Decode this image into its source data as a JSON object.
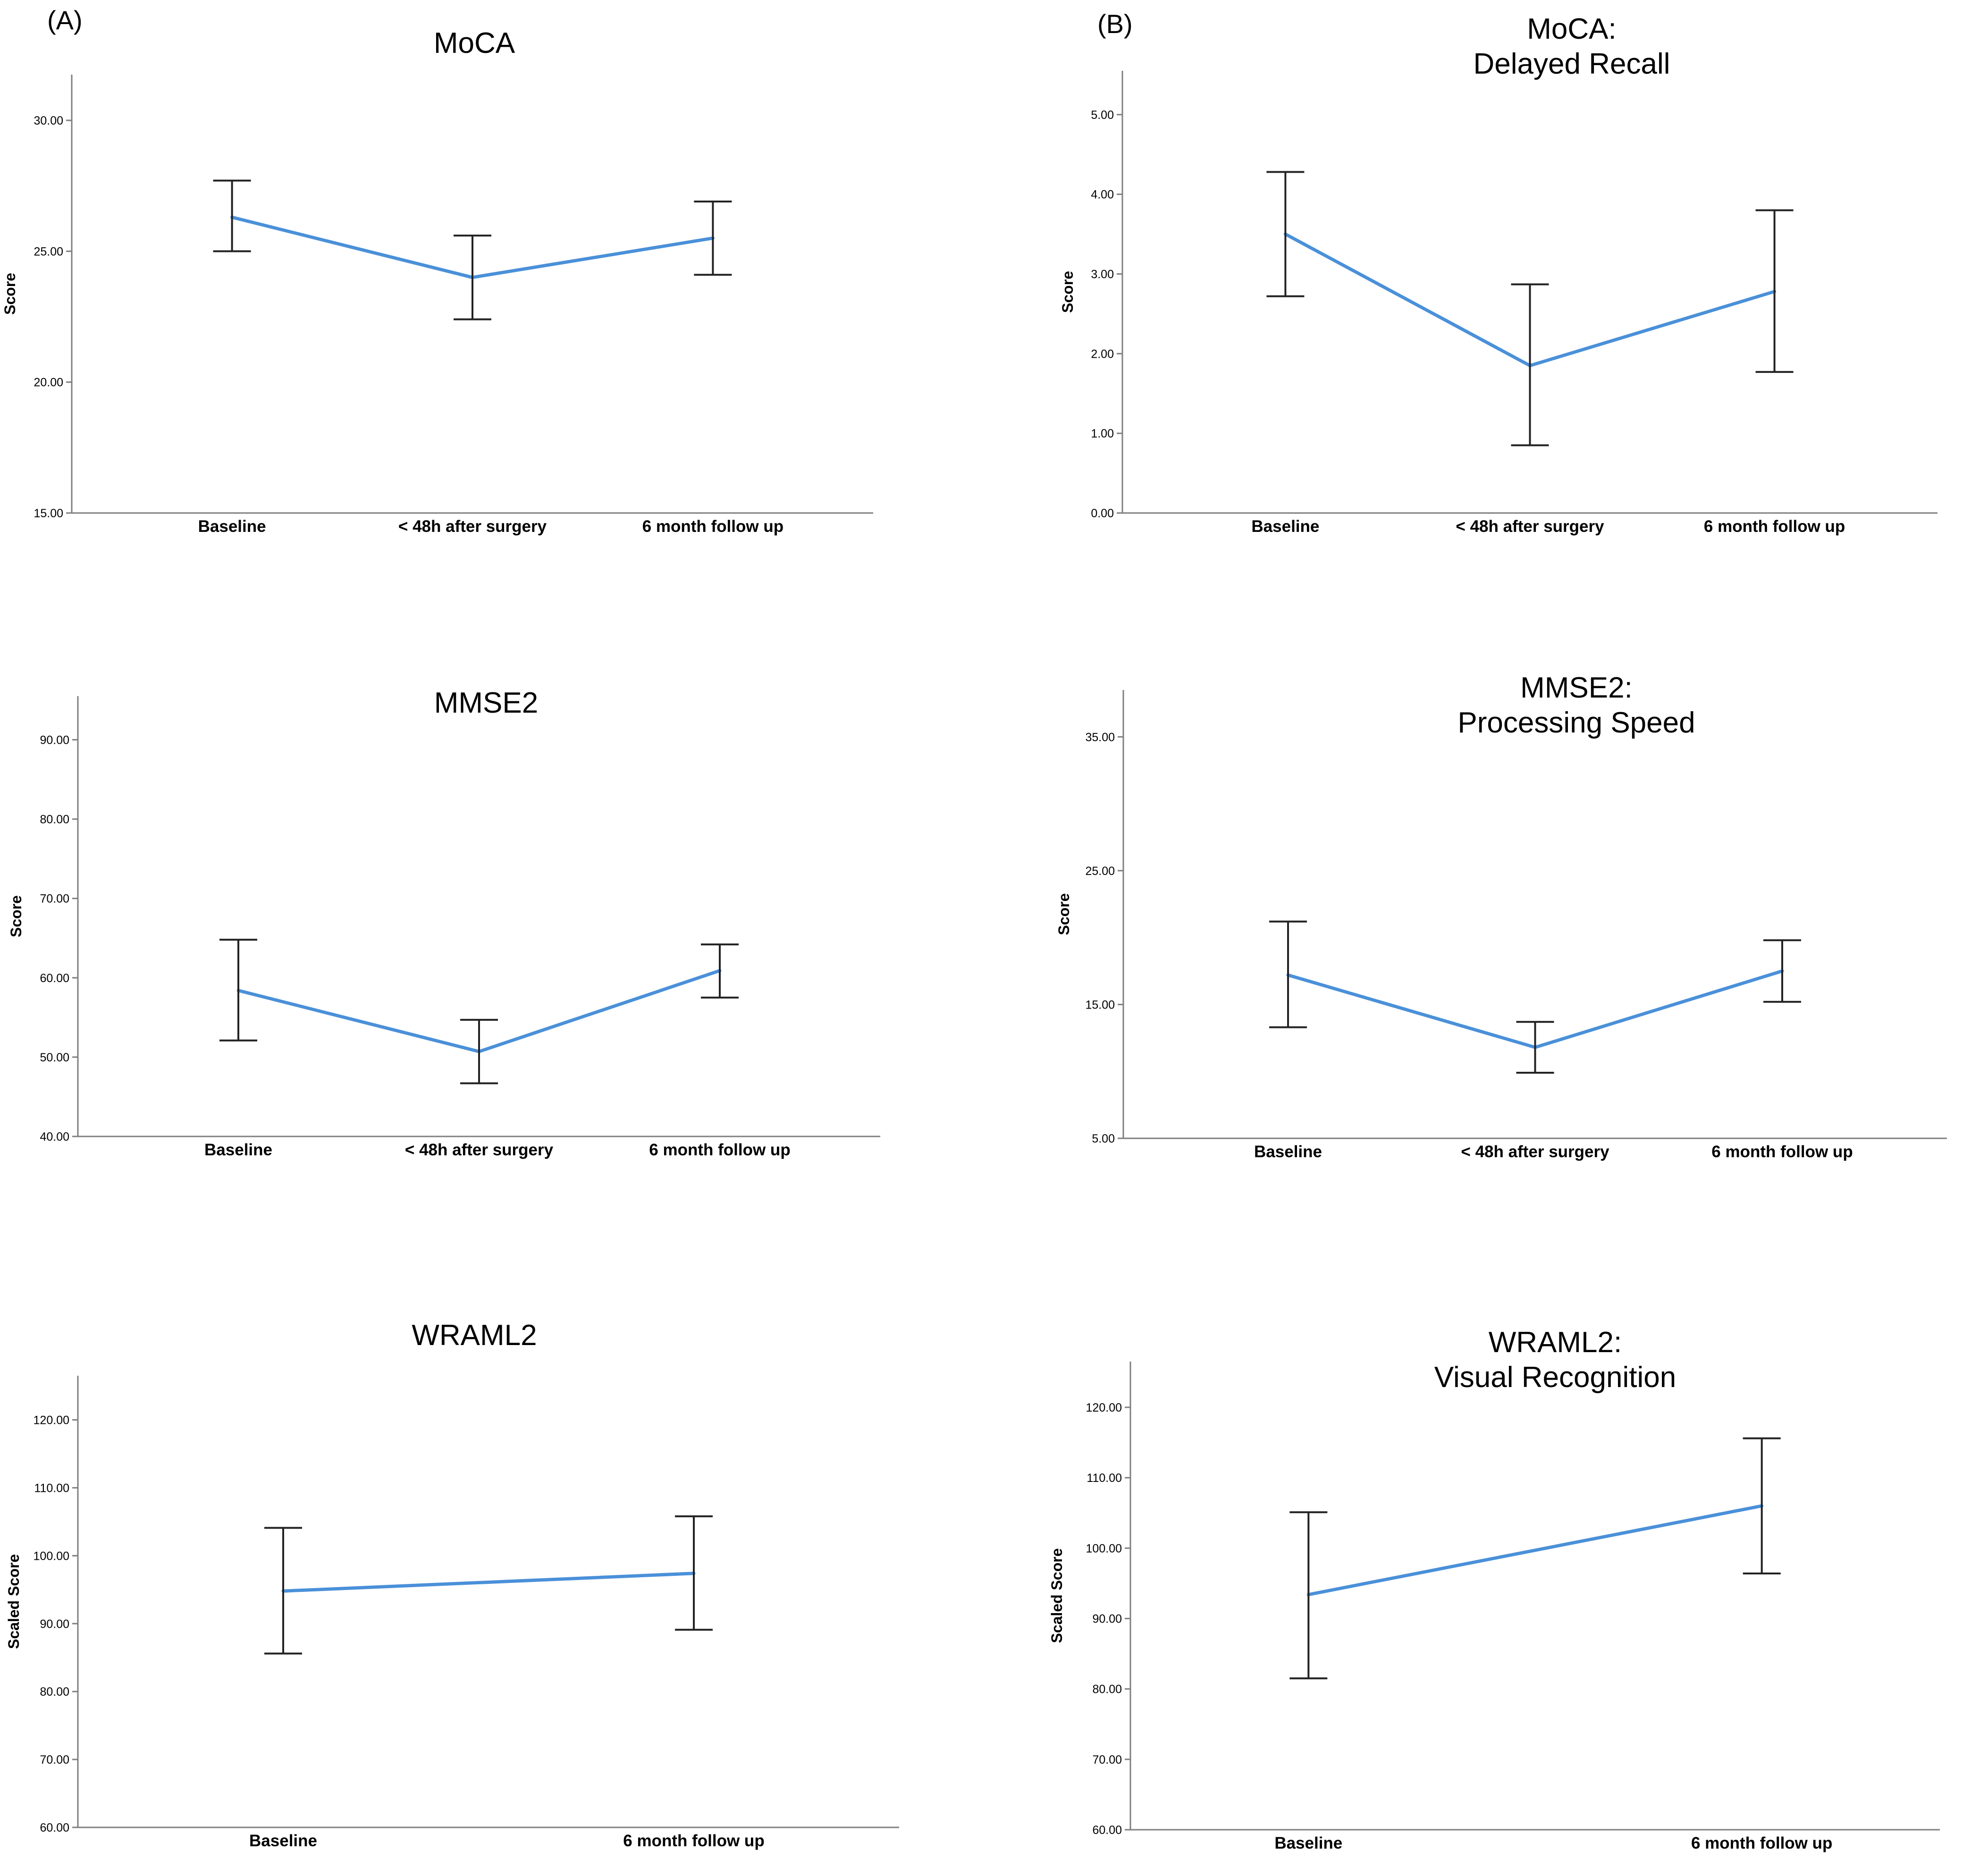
{
  "panel_labels": [
    "(A)",
    "(B)"
  ],
  "chart_data": [
    {
      "type": "line",
      "panel": "A",
      "title_lines": [
        "MoCA"
      ],
      "ylabel": "Score",
      "xlabel": "",
      "categories": [
        "Baseline",
        "< 48h after surgery",
        "6 month follow up"
      ],
      "series": [
        {
          "name": "Mean",
          "values": [
            26.3,
            24.0,
            25.5
          ],
          "error_low": [
            25.0,
            22.4,
            24.1
          ],
          "error_high": [
            27.7,
            25.6,
            26.9
          ]
        }
      ],
      "ylim": [
        15.0,
        31.75
      ],
      "yticks": [
        15.0,
        20.0,
        25.0,
        30.0
      ],
      "ytick_labels": [
        "15.00",
        "20.00",
        "25.00",
        "30.00"
      ],
      "color": "#4a90d9"
    },
    {
      "type": "line",
      "panel": "B",
      "title_lines": [
        "MoCA:",
        "Delayed Recall"
      ],
      "ylabel": "Score",
      "xlabel": "",
      "categories": [
        "Baseline",
        "< 48h after surgery",
        "6 month follow up"
      ],
      "series": [
        {
          "name": "Mean",
          "values": [
            3.5,
            1.85,
            2.78
          ],
          "error_low": [
            2.72,
            0.85,
            1.77
          ],
          "error_high": [
            4.28,
            2.87,
            3.8
          ]
        }
      ],
      "ylim": [
        0.0,
        5.55
      ],
      "yticks": [
        0.0,
        1.0,
        2.0,
        3.0,
        4.0,
        5.0
      ],
      "ytick_labels": [
        "0.00",
        "1.00",
        "2.00",
        "3.00",
        "4.00",
        "5.00"
      ],
      "color": "#4a90d9"
    },
    {
      "type": "line",
      "panel": "A",
      "title_lines": [
        "MMSE2"
      ],
      "ylabel": "Score",
      "xlabel": "",
      "categories": [
        "Baseline",
        "< 48h after surgery",
        "6 month follow up"
      ],
      "series": [
        {
          "name": "Mean",
          "values": [
            58.4,
            50.7,
            60.9
          ],
          "error_low": [
            52.1,
            46.7,
            57.5
          ],
          "error_high": [
            64.8,
            54.7,
            64.2
          ]
        }
      ],
      "ylim": [
        40.0,
        95.5
      ],
      "yticks": [
        40.0,
        50.0,
        60.0,
        70.0,
        80.0,
        90.0
      ],
      "ytick_labels": [
        "40.00",
        "50.00",
        "60.00",
        "70.00",
        "80.00",
        "90.00"
      ],
      "color": "#4a90d9"
    },
    {
      "type": "line",
      "panel": "B",
      "title_lines": [
        "MMSE2:",
        "Processing Speed"
      ],
      "ylabel": "Score",
      "xlabel": "",
      "categories": [
        "Baseline",
        "< 48h after surgery",
        "6 month follow up"
      ],
      "series": [
        {
          "name": "Mean",
          "values": [
            17.2,
            11.8,
            17.5
          ],
          "error_low": [
            13.3,
            9.9,
            15.2
          ],
          "error_high": [
            21.2,
            13.7,
            19.8
          ]
        }
      ],
      "ylim": [
        5.0,
        38.5
      ],
      "yticks": [
        5.0,
        15.0,
        25.0,
        35.0
      ],
      "ytick_labels": [
        "5.00",
        "15.00",
        "25.00",
        "35.00"
      ],
      "color": "#4a90d9"
    },
    {
      "type": "line",
      "panel": "A",
      "title_lines": [
        "WRAML2"
      ],
      "ylabel": "Scaled Score",
      "xlabel": "",
      "categories": [
        "Baseline",
        "6 month follow up"
      ],
      "series": [
        {
          "name": "Mean",
          "values": [
            94.8,
            97.4
          ],
          "error_low": [
            85.6,
            89.1
          ],
          "error_high": [
            104.1,
            105.8
          ]
        }
      ],
      "ylim": [
        60.0,
        126.5
      ],
      "yticks": [
        60.0,
        70.0,
        80.0,
        90.0,
        100.0,
        110.0,
        120.0
      ],
      "ytick_labels": [
        "60.00",
        "70.00",
        "80.00",
        "90.00",
        "100.00",
        "110.00",
        "120.00"
      ],
      "color": "#4a90d9"
    },
    {
      "type": "line",
      "panel": "B",
      "title_lines": [
        "WRAML2:",
        "Visual Recognition"
      ],
      "ylabel": "Scaled Score",
      "xlabel": "",
      "categories": [
        "Baseline",
        "6 month follow up"
      ],
      "series": [
        {
          "name": "Mean",
          "values": [
            93.4,
            106.0
          ],
          "error_low": [
            81.5,
            96.4
          ],
          "error_high": [
            105.1,
            115.6
          ]
        }
      ],
      "ylim": [
        60.0,
        126.5
      ],
      "yticks": [
        60.0,
        70.0,
        80.0,
        90.0,
        100.0,
        110.0,
        120.0
      ],
      "ytick_labels": [
        "60.00",
        "70.00",
        "80.00",
        "90.00",
        "100.00",
        "110.00",
        "120.00"
      ],
      "color": "#4a90d9"
    }
  ]
}
